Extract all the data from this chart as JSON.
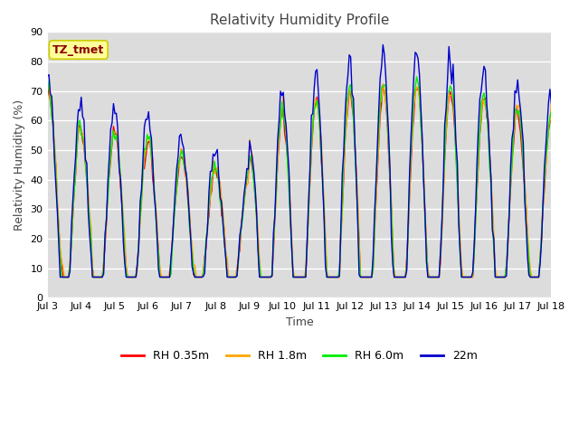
{
  "title": "Relativity Humidity Profile",
  "xlabel": "Time",
  "ylabel": "Relativity Humidity (%)",
  "ylim": [
    0,
    90
  ],
  "yticks": [
    0,
    10,
    20,
    30,
    40,
    50,
    60,
    70,
    80,
    90
  ],
  "xtick_labels": [
    "Jul 3",
    "Jul 4",
    "Jul 5",
    "Jul 6",
    "Jul 7",
    "Jul 8",
    "Jul 9",
    "Jul 10",
    "Jul 11",
    "Jul 12",
    "Jul 13",
    "Jul 14",
    "Jul 15",
    "Jul 16",
    "Jul 17",
    "Jul 18"
  ],
  "annotation_text": "TZ_tmet",
  "annotation_color": "#8B0000",
  "annotation_bg": "#FFFF99",
  "annotation_edge": "#CCCC00",
  "line_colors": {
    "RH 0.35m": "#FF0000",
    "RH 1.8m": "#FFA500",
    "RH 6.0m": "#00EE00",
    "22m": "#0000CC"
  },
  "bg_color": "#DCDCDC",
  "grid_color": "#FFFFFF",
  "title_fontsize": 11,
  "label_fontsize": 9,
  "tick_fontsize": 8,
  "legend_fontsize": 9
}
